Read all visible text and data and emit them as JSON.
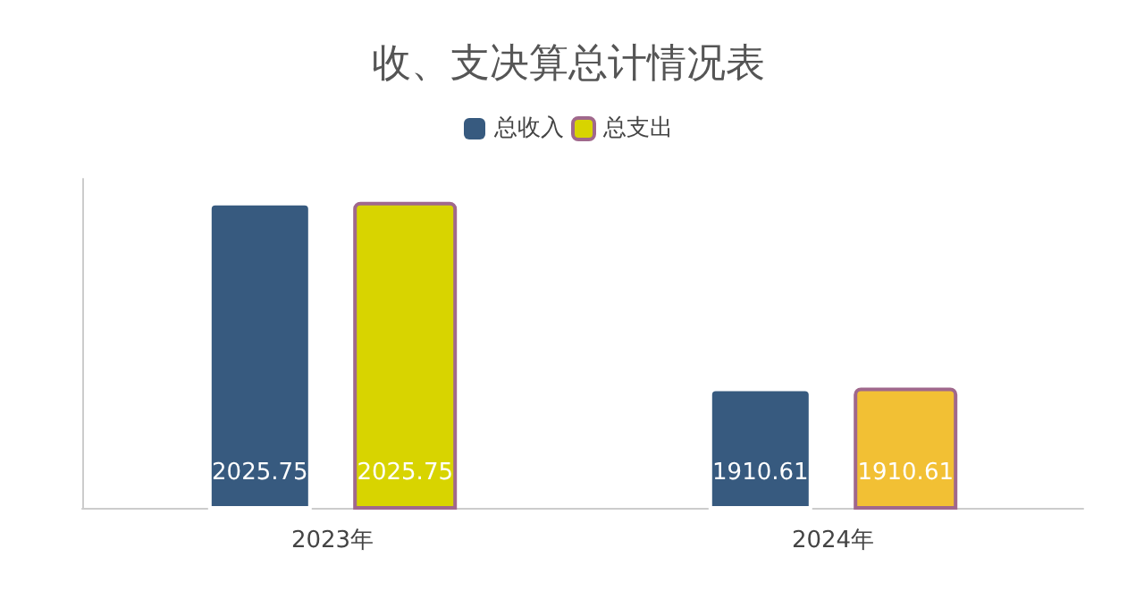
{
  "chart_data": {
    "type": "bar",
    "title": "收、支决算总计情况表",
    "categories": [
      "2023年",
      "2024年"
    ],
    "series": [
      {
        "name": "总收入",
        "color": "#375a7f",
        "values": [
          2025.75,
          1910.61
        ]
      },
      {
        "name": "总支出",
        "color": "#a0688c",
        "colors": [
          "#d8d400",
          "#f2c034"
        ],
        "values": [
          2025.75,
          1910.61
        ]
      }
    ],
    "ylim": [
      1836,
      2040
    ],
    "tick_labels": "x",
    "data_labels": true,
    "legend": "top"
  }
}
